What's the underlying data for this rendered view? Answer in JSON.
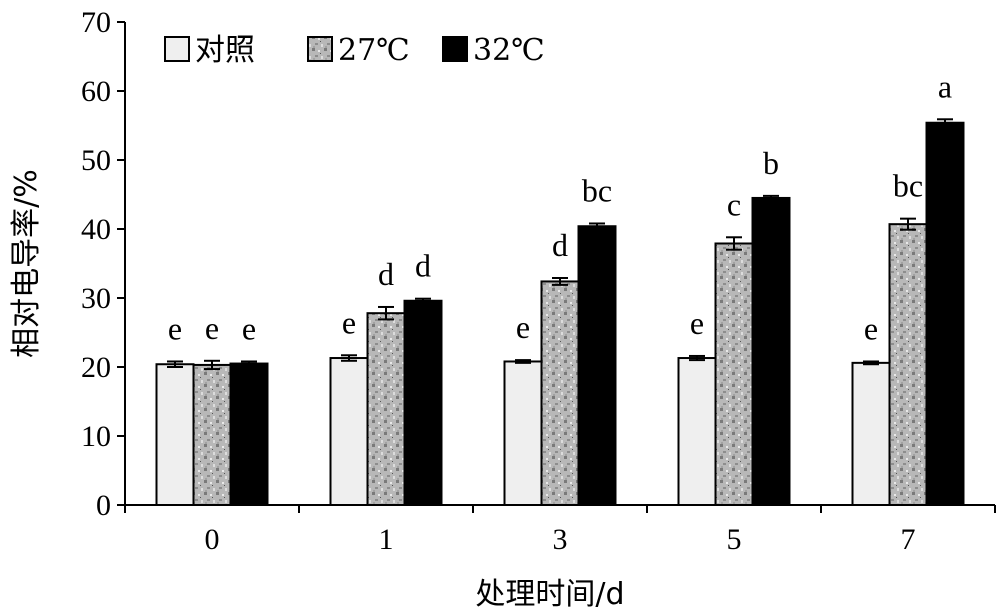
{
  "chart_data": {
    "type": "bar",
    "xlabel": "处理时间/d",
    "ylabel": "相对电导率/%",
    "ylim": [
      0,
      70
    ],
    "yticks": [
      0,
      10,
      20,
      30,
      40,
      50,
      60,
      70
    ],
    "categories": [
      "0",
      "1",
      "3",
      "5",
      "7"
    ],
    "legend_position": "top-left",
    "grid": false,
    "series": [
      {
        "name": "对照",
        "fill": "#efefef",
        "pattern": "none",
        "values": [
          20.4,
          21.3,
          20.8,
          21.3,
          20.6
        ],
        "errors": [
          0.4,
          0.4,
          0.2,
          0.3,
          0.2
        ],
        "labels": [
          "e",
          "e",
          "e",
          "e",
          "e"
        ]
      },
      {
        "name": "27℃",
        "fill": "#b9b9b9",
        "pattern": "speckle",
        "values": [
          20.3,
          27.8,
          32.4,
          37.9,
          40.7
        ],
        "errors": [
          0.6,
          0.9,
          0.5,
          0.9,
          0.8
        ],
        "labels": [
          "e",
          "d",
          "d",
          "c",
          "bc"
        ]
      },
      {
        "name": "32℃",
        "fill": "#000000",
        "pattern": "none",
        "values": [
          20.5,
          29.6,
          40.4,
          44.5,
          55.4
        ],
        "errors": [
          0.3,
          0.3,
          0.4,
          0.3,
          0.5
        ],
        "labels": [
          "e",
          "d",
          "bc",
          "b",
          "a"
        ]
      }
    ]
  }
}
